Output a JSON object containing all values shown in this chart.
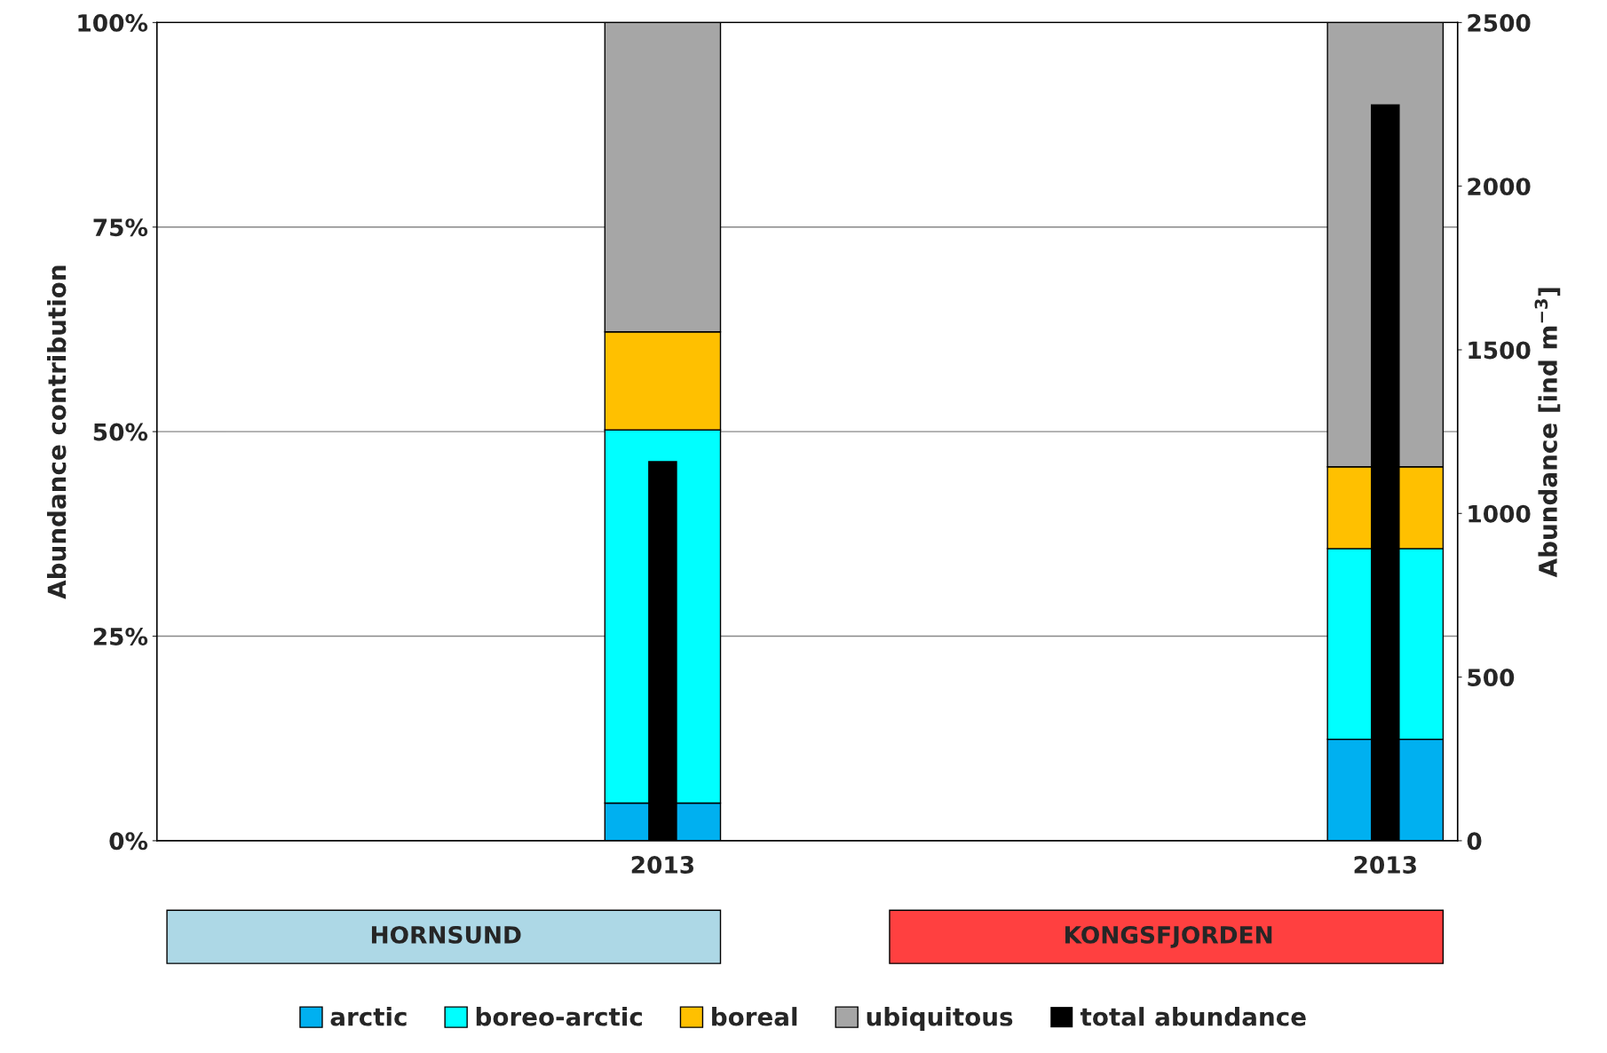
{
  "chart_data": {
    "type": "bar",
    "stacked": true,
    "ylabel": "Abundance contribution",
    "y2label": "Abundance [ind m$^{−3}$]",
    "categories": [
      null,
      null,
      null,
      "2013",
      null,
      null,
      null,
      null,
      "2013"
    ],
    "series": [
      {
        "name": "arctic",
        "color": "#00b0f0",
        "values": [
          null,
          null,
          null,
          4.6,
          null,
          null,
          null,
          null,
          12.4
        ]
      },
      {
        "name": "boreo-arctic",
        "color": "#00ffff",
        "values": [
          null,
          null,
          null,
          45.6,
          null,
          null,
          null,
          null,
          23.3
        ]
      },
      {
        "name": "boreal",
        "color": "#ffc000",
        "values": [
          null,
          null,
          null,
          12.0,
          null,
          null,
          null,
          null,
          10.0
        ]
      },
      {
        "name": "ubiquitous",
        "color": "#a6a6a6",
        "values": [
          null,
          null,
          null,
          37.8,
          null,
          null,
          null,
          null,
          54.3
        ]
      },
      {
        "name": "total abundance",
        "color": "#000000",
        "axis": "y2",
        "values": [
          null,
          null,
          null,
          1160,
          null,
          null,
          null,
          null,
          2250
        ]
      }
    ],
    "ylim": [
      0,
      100
    ],
    "yticks": [
      {
        "value": 0,
        "label": "0%"
      },
      {
        "value": 25,
        "label": "25%"
      },
      {
        "value": 50,
        "label": "50%"
      },
      {
        "value": 75,
        "label": "75%"
      },
      {
        "value": 100,
        "label": "100%"
      }
    ],
    "y2lim": [
      0,
      2500
    ],
    "y2ticks": [
      0,
      500,
      1000,
      1500,
      2000,
      2500
    ],
    "grid": "y",
    "legend": "bottom",
    "annotations": [
      "HORNSUND",
      "KONGSFJORDEN"
    ]
  }
}
